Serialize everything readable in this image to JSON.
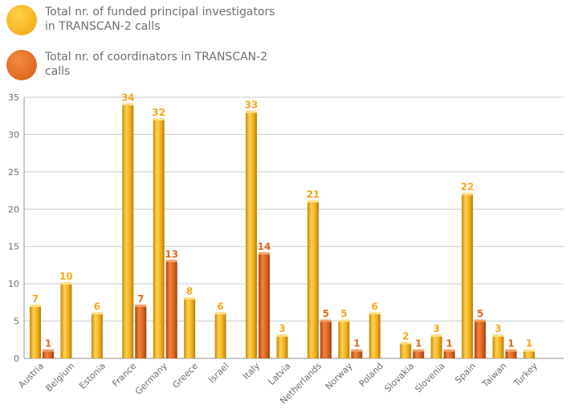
{
  "chart_data": {
    "type": "bar",
    "categories": [
      "Austria",
      "Belgium",
      "Estonia",
      "France",
      "Germany",
      "Greece",
      "Israel",
      "Italy",
      "Latvia",
      "Netherlands",
      "Norway",
      "Poland",
      "Slovakia",
      "Slovenia",
      "Spain",
      "Taiwan",
      "Turkey"
    ],
    "series": [
      {
        "name": "Total nr. of funded principal investigators in TRANSCAN-2 calls",
        "values": [
          7,
          10,
          6,
          34,
          32,
          8,
          6,
          33,
          3,
          21,
          5,
          6,
          2,
          3,
          22,
          3,
          1
        ],
        "color": "#f5b21e"
      },
      {
        "name": "Total nr. of coordinators in TRANSCAN-2 calls",
        "values": [
          1,
          null,
          null,
          7,
          13,
          null,
          null,
          14,
          null,
          5,
          1,
          null,
          1,
          1,
          5,
          1,
          null
        ],
        "color": "#e06a1f"
      }
    ],
    "ylim": [
      0,
      35
    ],
    "yticks": [
      0,
      5,
      10,
      15,
      20,
      25,
      30,
      35
    ],
    "grid": true,
    "legend_position": "top-left"
  }
}
